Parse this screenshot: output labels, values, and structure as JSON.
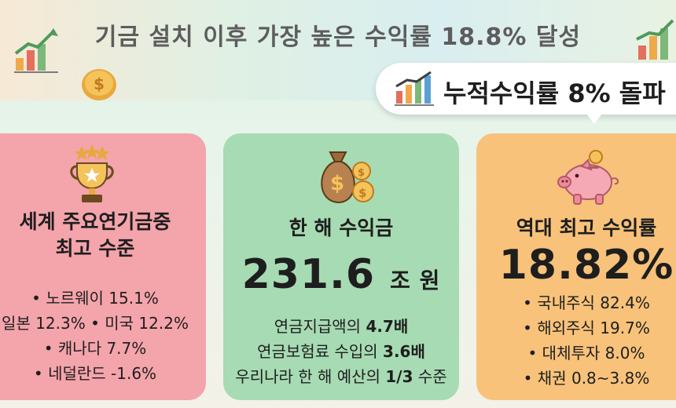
{
  "header": {
    "title": "기금 설치 이후 가장 높은 수익률 18.8% 달성"
  },
  "badge": {
    "text": "누적수익률 8% 돌파",
    "icon": "bar-chart-arrow-icon"
  },
  "cards": [
    {
      "icon": "trophy-icon",
      "title_lines": [
        "세계 주요연기금중",
        "최고 수준"
      ],
      "items": [
        "• 노르웨이 15.1%",
        "일본 12.3%  • 미국 12.2%",
        "• 캐나다 7.7%",
        "• 네덜란드 -1.6%"
      ]
    },
    {
      "icon": "money-bag-icon",
      "title": "한 해 수익금",
      "big_number": "231.6",
      "big_unit": "조 원",
      "details": [
        {
          "text": "연금지급액의 ",
          "bold": "4.7배",
          "suffix": ""
        },
        {
          "text": "연금보험료 수입의 ",
          "bold": "3.6배",
          "suffix": ""
        },
        {
          "text": "우리나라 한 해 예산의 ",
          "bold": "1/3",
          "suffix": " 수준"
        }
      ]
    },
    {
      "icon": "piggy-bank-icon",
      "title": "역대 최고 수익률",
      "big_number": "18.82%",
      "items": [
        "• 국내주식 82.4%",
        "• 해외주식 19.7%",
        "• 대체투자 8.0%",
        "• 채권 0.8~3.8%"
      ]
    }
  ],
  "colors": {
    "pink": "#f4a4ab",
    "green": "#a7dbb3",
    "orange": "#f8c27a",
    "title_gray": "#5d5d5d"
  }
}
